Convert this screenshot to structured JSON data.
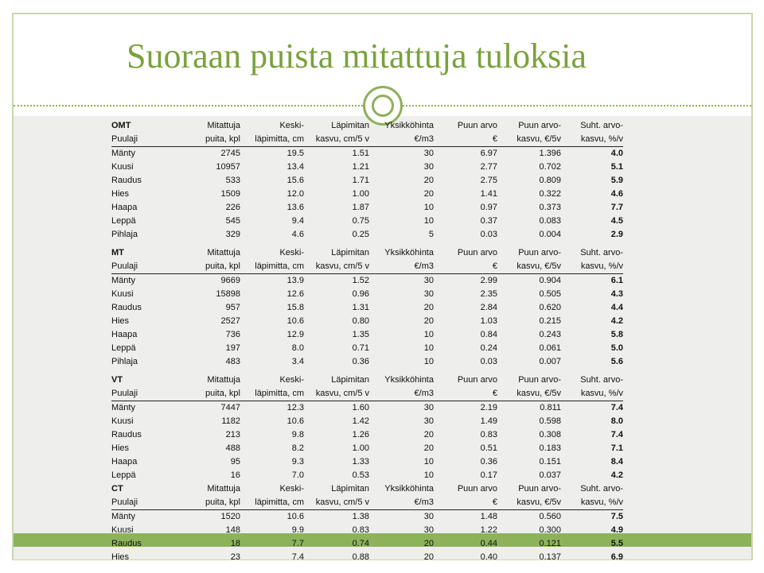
{
  "title": "Suoraan puista mitattuja tuloksia",
  "colors": {
    "accent": "#7aa23c",
    "band": "#eeeeec",
    "highlight": "#8db35a"
  },
  "sections": [
    {
      "site_type": "OMT",
      "header1": [
        "Mitattuja",
        "Keski-",
        "Läpimitan",
        "Yksikköhinta",
        "Puun arvo",
        "Puun arvo-",
        "Suht. arvo-"
      ],
      "header2": [
        "Puulaji",
        "puita, kpl",
        "läpimitta, cm",
        "kasvu, cm/5 v",
        "€/m3",
        "€",
        "kasvu, €/5v",
        "kasvu, %/v"
      ],
      "rows": [
        [
          "Mänty",
          "2745",
          "19.5",
          "1.51",
          "30",
          "6.97",
          "1.396",
          "4.0"
        ],
        [
          "Kuusi",
          "10957",
          "13.4",
          "1.21",
          "30",
          "2.77",
          "0.702",
          "5.1"
        ],
        [
          "Raudus",
          "533",
          "15.6",
          "1.71",
          "20",
          "2.75",
          "0.809",
          "5.9"
        ],
        [
          "Hies",
          "1509",
          "12.0",
          "1.00",
          "20",
          "1.41",
          "0.322",
          "4.6"
        ],
        [
          "Haapa",
          "226",
          "13.6",
          "1.87",
          "10",
          "0.97",
          "0.373",
          "7.7"
        ],
        [
          "Leppä",
          "545",
          "9.4",
          "0.75",
          "10",
          "0.37",
          "0.083",
          "4.5"
        ],
        [
          "Pihlaja",
          "329",
          "4.6",
          "0.25",
          "5",
          "0.03",
          "0.004",
          "2.9"
        ]
      ]
    },
    {
      "site_type": "MT",
      "header1": [
        "Mitattuja",
        "Keski-",
        "Läpimitan",
        "Yksikköhinta",
        "Puun arvo",
        "Puun arvo-",
        "Suht. arvo-"
      ],
      "header2": [
        "Puulaji",
        "puita, kpl",
        "läpimitta, cm",
        "kasvu, cm/5 v",
        "€/m3",
        "€",
        "kasvu, €/5v",
        "kasvu, %/v"
      ],
      "rows": [
        [
          "Mänty",
          "9669",
          "13.9",
          "1.52",
          "30",
          "2.99",
          "0.904",
          "6.1"
        ],
        [
          "Kuusi",
          "15898",
          "12.6",
          "0.96",
          "30",
          "2.35",
          "0.505",
          "4.3"
        ],
        [
          "Raudus",
          "957",
          "15.8",
          "1.31",
          "20",
          "2.84",
          "0.620",
          "4.4"
        ],
        [
          "Hies",
          "2527",
          "10.6",
          "0.80",
          "20",
          "1.03",
          "0.215",
          "4.2"
        ],
        [
          "Haapa",
          "736",
          "12.9",
          "1.35",
          "10",
          "0.84",
          "0.243",
          "5.8"
        ],
        [
          "Leppä",
          "197",
          "8.0",
          "0.71",
          "10",
          "0.24",
          "0.061",
          "5.0"
        ],
        [
          "Pihlaja",
          "483",
          "3.4",
          "0.36",
          "10",
          "0.03",
          "0.007",
          "5.6"
        ]
      ]
    },
    {
      "site_type": "VT",
      "header1": [
        "Mitattuja",
        "Keski-",
        "Läpimitan",
        "Yksikköhinta",
        "Puun arvo",
        "Puun arvo-",
        "Suht. arvo-"
      ],
      "header2": [
        "Puulaji",
        "puita, kpl",
        "läpimitta, cm",
        "kasvu, cm/5 v",
        "€/m3",
        "€",
        "kasvu, €/5v",
        "kasvu, %/v"
      ],
      "rows": [
        [
          "Mänty",
          "7447",
          "12.3",
          "1.60",
          "30",
          "2.19",
          "0.811",
          "7.4"
        ],
        [
          "Kuusi",
          "1182",
          "10.6",
          "1.42",
          "30",
          "1.49",
          "0.598",
          "8.0"
        ],
        [
          "Raudus",
          "213",
          "9.8",
          "1.26",
          "20",
          "0.83",
          "0.308",
          "7.4"
        ],
        [
          "Hies",
          "488",
          "8.2",
          "1.00",
          "20",
          "0.51",
          "0.183",
          "7.1"
        ],
        [
          "Haapa",
          "95",
          "9.3",
          "1.33",
          "10",
          "0.36",
          "0.151",
          "8.4"
        ],
        [
          "Leppä",
          "16",
          "7.0",
          "0.53",
          "10",
          "0.17",
          "0.037",
          "4.2"
        ]
      ]
    },
    {
      "site_type": "CT",
      "header1": [
        "Mitattuja",
        "Keski-",
        "Läpimitan",
        "Yksikköhinta",
        "Puun arvo",
        "Puun arvo-",
        "Suht. arvo-"
      ],
      "header2": [
        "Puulaji",
        "puita, kpl",
        "läpimitta, cm",
        "kasvu, cm/5 v",
        "€/m3",
        "€",
        "kasvu, €/5v",
        "kasvu, %/v"
      ],
      "rows": [
        [
          "Mänty",
          "1520",
          "10.6",
          "1.38",
          "30",
          "1.48",
          "0.560",
          "7.5"
        ],
        [
          "Kuusi",
          "148",
          "9.9",
          "0.83",
          "30",
          "1.22",
          "0.300",
          "4.9"
        ],
        [
          "Raudus",
          "18",
          "7.7",
          "0.74",
          "20",
          "0.44",
          "0.121",
          "5.5"
        ],
        [
          "Hies",
          "23",
          "7.4",
          "0.88",
          "20",
          "0.40",
          "0.137",
          "6.9"
        ]
      ]
    }
  ]
}
